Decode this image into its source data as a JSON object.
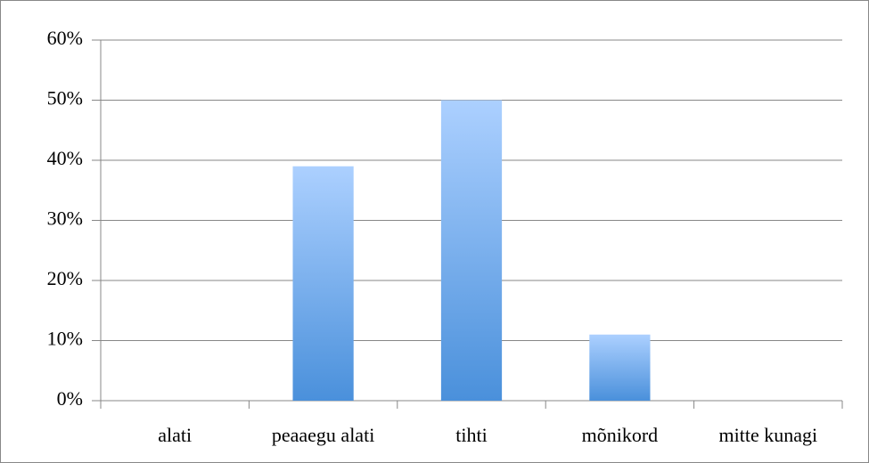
{
  "chart_data": {
    "type": "bar",
    "categories": [
      "alati",
      "peaaegu alati",
      "tihti",
      "mõnikord",
      "mitte kunagi"
    ],
    "values": [
      0,
      39,
      50,
      11,
      0
    ],
    "gradient": [
      "#acd0ff",
      "#4a90db"
    ],
    "ylim": [
      0,
      60
    ],
    "yticks": [
      {
        "value": 0,
        "label": "0%"
      },
      {
        "value": 10,
        "label": "10%"
      },
      {
        "value": 20,
        "label": "20%"
      },
      {
        "value": 30,
        "label": "30%"
      },
      {
        "value": 40,
        "label": "40%"
      },
      {
        "value": 50,
        "label": "50%"
      },
      {
        "value": 60,
        "label": "60%"
      }
    ],
    "grid": true
  }
}
